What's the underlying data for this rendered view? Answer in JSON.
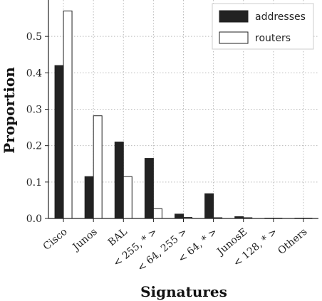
{
  "chart_data": {
    "type": "bar",
    "categories": [
      "Cisco",
      "Junos",
      "BAL",
      "< 255, * >",
      "< 64, 255 >",
      "< 64, * >",
      "JunosE",
      "< 128, * >",
      "Others"
    ],
    "series": [
      {
        "name": "addresses",
        "values": [
          0.42,
          0.115,
          0.21,
          0.165,
          0.012,
          0.068,
          0.005,
          0.001,
          0.001
        ]
      },
      {
        "name": "routers",
        "values": [
          0.57,
          0.282,
          0.115,
          0.027,
          0.003,
          0.002,
          0.002,
          0.001,
          0.001
        ]
      }
    ],
    "yticks": [
      "0.0",
      "0.1",
      "0.2",
      "0.3",
      "0.4",
      "0.5"
    ],
    "xlabel": "Signatures",
    "ylabel": "Proportion",
    "ylim": [
      0,
      0.6
    ],
    "grid": "dotted",
    "legend_position": "top-right",
    "colors": {
      "addresses": "#222222",
      "routers": "#ffffff",
      "outline": "#222222",
      "grid": "#bbbbbb"
    }
  }
}
